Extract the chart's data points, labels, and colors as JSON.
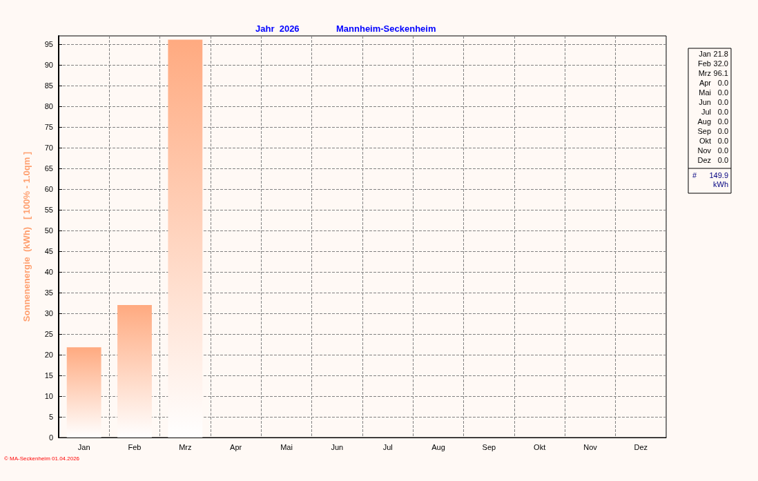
{
  "chart_data": {
    "type": "bar",
    "title": "Jahr  2026",
    "subtitle": "Mannheim-Seckenheim",
    "ylabel": "Sonnenenergie  (kWh)   [ 100% - 1.0qm ]",
    "categories": [
      "Jan",
      "Feb",
      "Mrz",
      "Apr",
      "Mai",
      "Jun",
      "Jul",
      "Aug",
      "Sep",
      "Okt",
      "Nov",
      "Dez"
    ],
    "values": [
      21.8,
      32.0,
      96.1,
      0,
      0,
      0,
      0,
      0,
      0,
      0,
      0,
      0
    ],
    "color": "#ffaa80",
    "ylim": [
      0,
      97
    ],
    "yticks": [
      0,
      5,
      10,
      15,
      20,
      25,
      30,
      35,
      40,
      45,
      50,
      55,
      60,
      65,
      70,
      75,
      80,
      85,
      90,
      95
    ],
    "grid": true,
    "annotations": [
      "Jan 21.8",
      "Feb 32.0",
      "Mrz 96.1",
      "Apr 0.0",
      "Mai 0.0",
      "Jun 0.0",
      "Jul 0.0",
      "Aug 0.0",
      "Sep 0.0",
      "Okt 0.0",
      "Nov 0.0",
      "Dez 0.0",
      "# 149.9 kWh",
      "© MA-Seckenheim 01.04.2026"
    ]
  }
}
